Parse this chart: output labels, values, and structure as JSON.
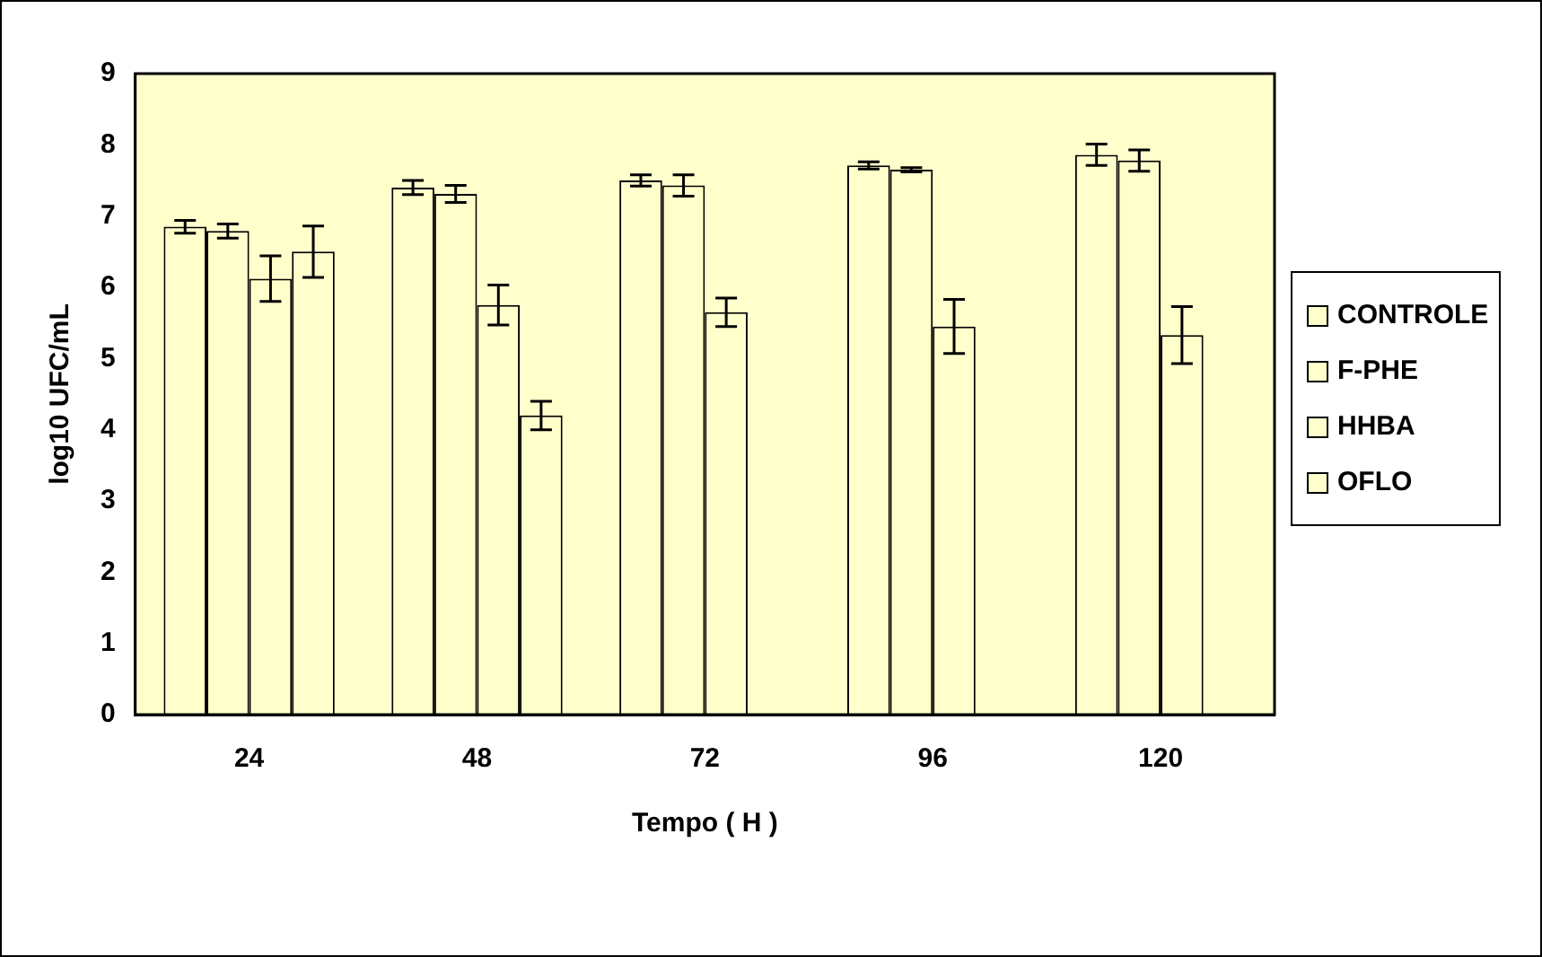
{
  "chart_data": {
    "type": "bar",
    "xlabel": "Tempo ( H )",
    "ylabel": "log10 UFC/mL",
    "categories": [
      "24",
      "48",
      "72",
      "96",
      "120"
    ],
    "ylim": [
      0,
      9
    ],
    "yticks": [
      0,
      1,
      2,
      3,
      4,
      5,
      6,
      7,
      8,
      9
    ],
    "grid": false,
    "legend": "right",
    "series": [
      {
        "name": "CONTROLE",
        "color": "#ffffcc",
        "values": [
          6.85,
          7.4,
          7.5,
          7.71,
          7.86
        ],
        "errors": [
          0.09,
          0.1,
          0.08,
          0.05,
          0.15
        ]
      },
      {
        "name": "F-PHE",
        "color": "#ffffcc",
        "values": [
          6.79,
          7.31,
          7.43,
          7.65,
          7.78
        ],
        "errors": [
          0.1,
          0.12,
          0.15,
          0.03,
          0.15
        ]
      },
      {
        "name": "HHBA",
        "color": "#ffffcc",
        "values": [
          6.12,
          5.75,
          5.65,
          5.45,
          5.33
        ],
        "errors": [
          0.32,
          0.28,
          0.2,
          0.38,
          0.4
        ]
      },
      {
        "name": "OFLO",
        "color": "#ffffcc",
        "values": [
          6.5,
          4.2,
          null,
          null,
          null
        ],
        "errors": [
          0.36,
          0.2,
          null,
          null,
          null
        ]
      }
    ]
  }
}
